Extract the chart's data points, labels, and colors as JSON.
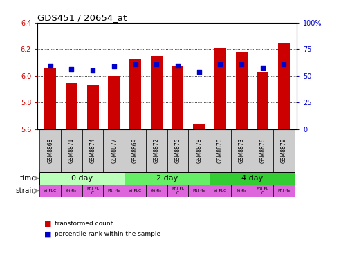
{
  "title": "GDS451 / 20654_at",
  "samples": [
    "GSM8868",
    "GSM8871",
    "GSM8874",
    "GSM8877",
    "GSM8869",
    "GSM8872",
    "GSM8875",
    "GSM8878",
    "GSM8870",
    "GSM8873",
    "GSM8876",
    "GSM8879"
  ],
  "red_values": [
    6.06,
    5.95,
    5.93,
    6.0,
    6.13,
    6.15,
    6.08,
    5.64,
    6.21,
    6.18,
    6.03,
    6.25
  ],
  "blue_values": [
    6.08,
    6.05,
    6.04,
    6.07,
    6.09,
    6.09,
    6.08,
    6.03,
    6.09,
    6.09,
    6.06,
    6.09
  ],
  "ylim_left": [
    5.6,
    6.4
  ],
  "ylim_right": [
    0,
    100
  ],
  "yticks_left": [
    5.6,
    5.8,
    6.0,
    6.2,
    6.4
  ],
  "yticks_right": [
    0,
    25,
    50,
    75,
    100
  ],
  "ytick_labels_right": [
    "0",
    "25",
    "50",
    "75",
    "100%"
  ],
  "bar_bottom": 5.6,
  "time_groups": [
    {
      "label": "0 day",
      "start": 0,
      "end": 4,
      "color": "#bbffbb"
    },
    {
      "label": "2 day",
      "start": 4,
      "end": 8,
      "color": "#66ee66"
    },
    {
      "label": "4 day",
      "start": 8,
      "end": 12,
      "color": "#33cc33"
    }
  ],
  "strain_labels": [
    "tri-FLC",
    "fri-flc",
    "FRI-FL\nC",
    "FRI-flc",
    "tri-FLC",
    "fri-flc",
    "FRI-FL\nC",
    "FRI-flc",
    "tri-FLC",
    "fri-flc",
    "FRI-FL\nC",
    "FRI-flc"
  ],
  "strain_color": "#dd66dd",
  "sample_box_color": "#cccccc",
  "bar_color": "#cc0000",
  "dot_color": "#0000cc",
  "bg_color": "#ffffff",
  "tick_label_color_left": "#cc0000",
  "tick_label_color_right": "#0000cc",
  "bar_width": 0.55,
  "label_arrow_color": "#888888"
}
